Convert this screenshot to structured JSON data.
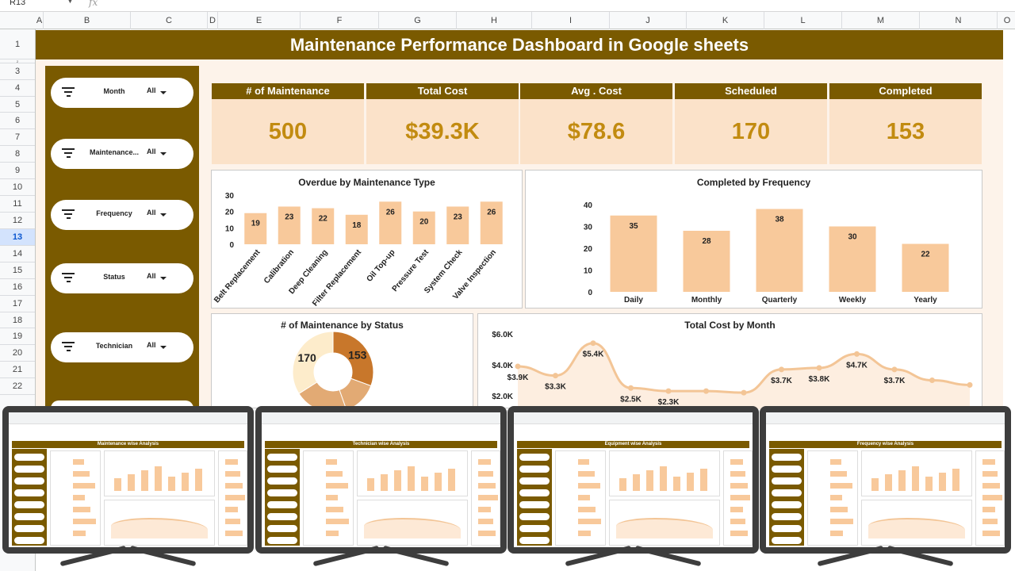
{
  "sheet": {
    "name_box": "R13",
    "fx": "fx",
    "columns": [
      "A",
      "B",
      "C",
      "D",
      "E",
      "F",
      "G",
      "H",
      "I",
      "J",
      "K",
      "L",
      "M",
      "N",
      "O"
    ],
    "rows": [
      "1",
      "2",
      "3",
      "4",
      "5",
      "6",
      "7",
      "8",
      "9",
      "10",
      "11",
      "12",
      "13",
      "14",
      "15",
      "16",
      "17",
      "18",
      "19",
      "20",
      "21",
      "22"
    ],
    "selected_row": "13"
  },
  "dashboard": {
    "title": "Maintenance Performance Dashboard in Google sheets",
    "filters": [
      {
        "label": "Month",
        "value": "All"
      },
      {
        "label": "Maintenance...",
        "value": "All"
      },
      {
        "label": "Frequency",
        "value": "All"
      },
      {
        "label": "Status",
        "value": "All"
      },
      {
        "label": "Technician",
        "value": "All"
      }
    ],
    "kpis": [
      {
        "label": "# of Maintenance",
        "value": "500"
      },
      {
        "label": "Total Cost",
        "value": "$39.3K"
      },
      {
        "label": "Avg . Cost",
        "value": "$78.6"
      },
      {
        "label": "Scheduled",
        "value": "170"
      },
      {
        "label": "Completed",
        "value": "153"
      }
    ]
  },
  "colors": {
    "brand": "#7a5a00",
    "bar": "#f8c99b",
    "kpi_bg": "#fbe2c9",
    "kpi_value": "#c28b10",
    "donut_dark": "#c8772b",
    "donut_mid": "#e2aa74",
    "donut_light": "#fdeccb"
  },
  "chart_data": [
    {
      "type": "bar",
      "title": "Overdue by Maintenance Type",
      "categories": [
        "Belt Replacement",
        "Calibration",
        "Deep Cleaning",
        "Filter Replacement",
        "Oil Top-up",
        "Pressure Test",
        "System Check",
        "Valve Inspection"
      ],
      "values": [
        19,
        23,
        22,
        18,
        26,
        20,
        23,
        26
      ],
      "yticks": [
        "0",
        "10",
        "20",
        "30"
      ],
      "ylim": [
        0,
        30
      ]
    },
    {
      "type": "bar",
      "title": "Completed by Frequency",
      "categories": [
        "Daily",
        "Monthly",
        "Quarterly",
        "Weekly",
        "Yearly"
      ],
      "values": [
        35,
        28,
        38,
        30,
        22
      ],
      "yticks": [
        "0",
        "10",
        "20",
        "30",
        "40"
      ],
      "ylim": [
        0,
        40
      ]
    },
    {
      "type": "pie",
      "title": "# of Maintenance by Status",
      "slices": [
        {
          "label": "153",
          "value": 153
        },
        {
          "label": "",
          "value": 70
        },
        {
          "label": "",
          "value": 107
        },
        {
          "label": "170",
          "value": 170
        }
      ]
    },
    {
      "type": "area",
      "title": "Total Cost by Month",
      "yticks": [
        "$2.0K",
        "$4.0K",
        "$6.0K"
      ],
      "ylim": [
        0,
        6000
      ],
      "values": [
        3900,
        3300,
        5400,
        2500,
        2300,
        2300,
        2200,
        3700,
        3800,
        4700,
        3700,
        3000,
        2700
      ],
      "labels": [
        "$3.9K",
        "$3.3K",
        "$5.4K",
        "$2.5K",
        "$2.3K",
        "",
        "",
        "$3.7K",
        "$3.8K",
        "$4.7K",
        "$3.7K",
        "",
        ""
      ]
    }
  ],
  "previews": [
    {
      "title": "Maintenance wise Analysis"
    },
    {
      "title": "Technician wise Analysis"
    },
    {
      "title": "Equipment wise Analysis"
    },
    {
      "title": "Frequency wise Analysis"
    }
  ]
}
